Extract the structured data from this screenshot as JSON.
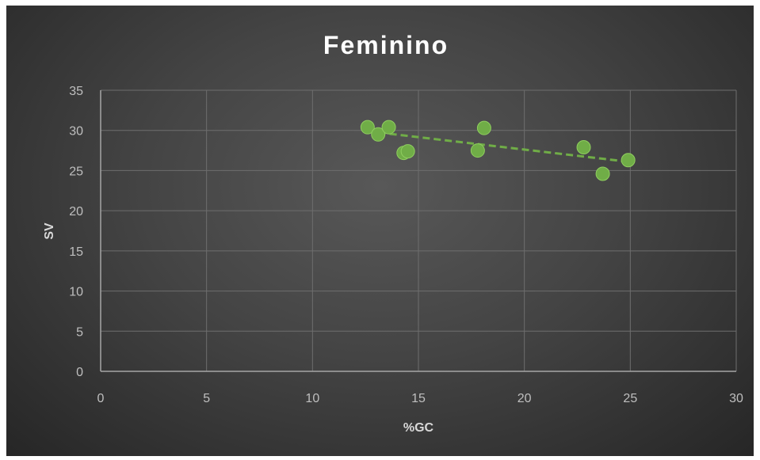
{
  "chart_data": {
    "type": "scatter",
    "title": "Feminino",
    "xlabel": "%GC",
    "ylabel": "SV",
    "xlim": [
      0,
      30
    ],
    "ylim": [
      0,
      35
    ],
    "x_ticks": [
      0,
      5,
      10,
      15,
      20,
      25,
      30
    ],
    "y_ticks": [
      0,
      5,
      10,
      15,
      20,
      25,
      30,
      35
    ],
    "grid": true,
    "legend": "none",
    "trendline": {
      "type": "linear",
      "style": "dashed",
      "x_range": [
        12.6,
        24.9
      ],
      "y_range": [
        29.9,
        26.1
      ]
    },
    "series": [
      {
        "color": "#70ad47",
        "points": [
          {
            "x": 12.6,
            "y": 30.4
          },
          {
            "x": 13.1,
            "y": 29.5
          },
          {
            "x": 13.6,
            "y": 30.4
          },
          {
            "x": 14.3,
            "y": 27.2
          },
          {
            "x": 14.5,
            "y": 27.4
          },
          {
            "x": 17.8,
            "y": 27.5
          },
          {
            "x": 18.1,
            "y": 30.3
          },
          {
            "x": 22.8,
            "y": 27.9
          },
          {
            "x": 23.7,
            "y": 24.6
          },
          {
            "x": 24.9,
            "y": 26.3
          }
        ]
      }
    ]
  },
  "colors": {
    "background": "#404040",
    "gridline": "#6e6e6e",
    "axis_line": "#a6a6a6",
    "marker": "#70ad47",
    "trendline": "#70ad47"
  }
}
